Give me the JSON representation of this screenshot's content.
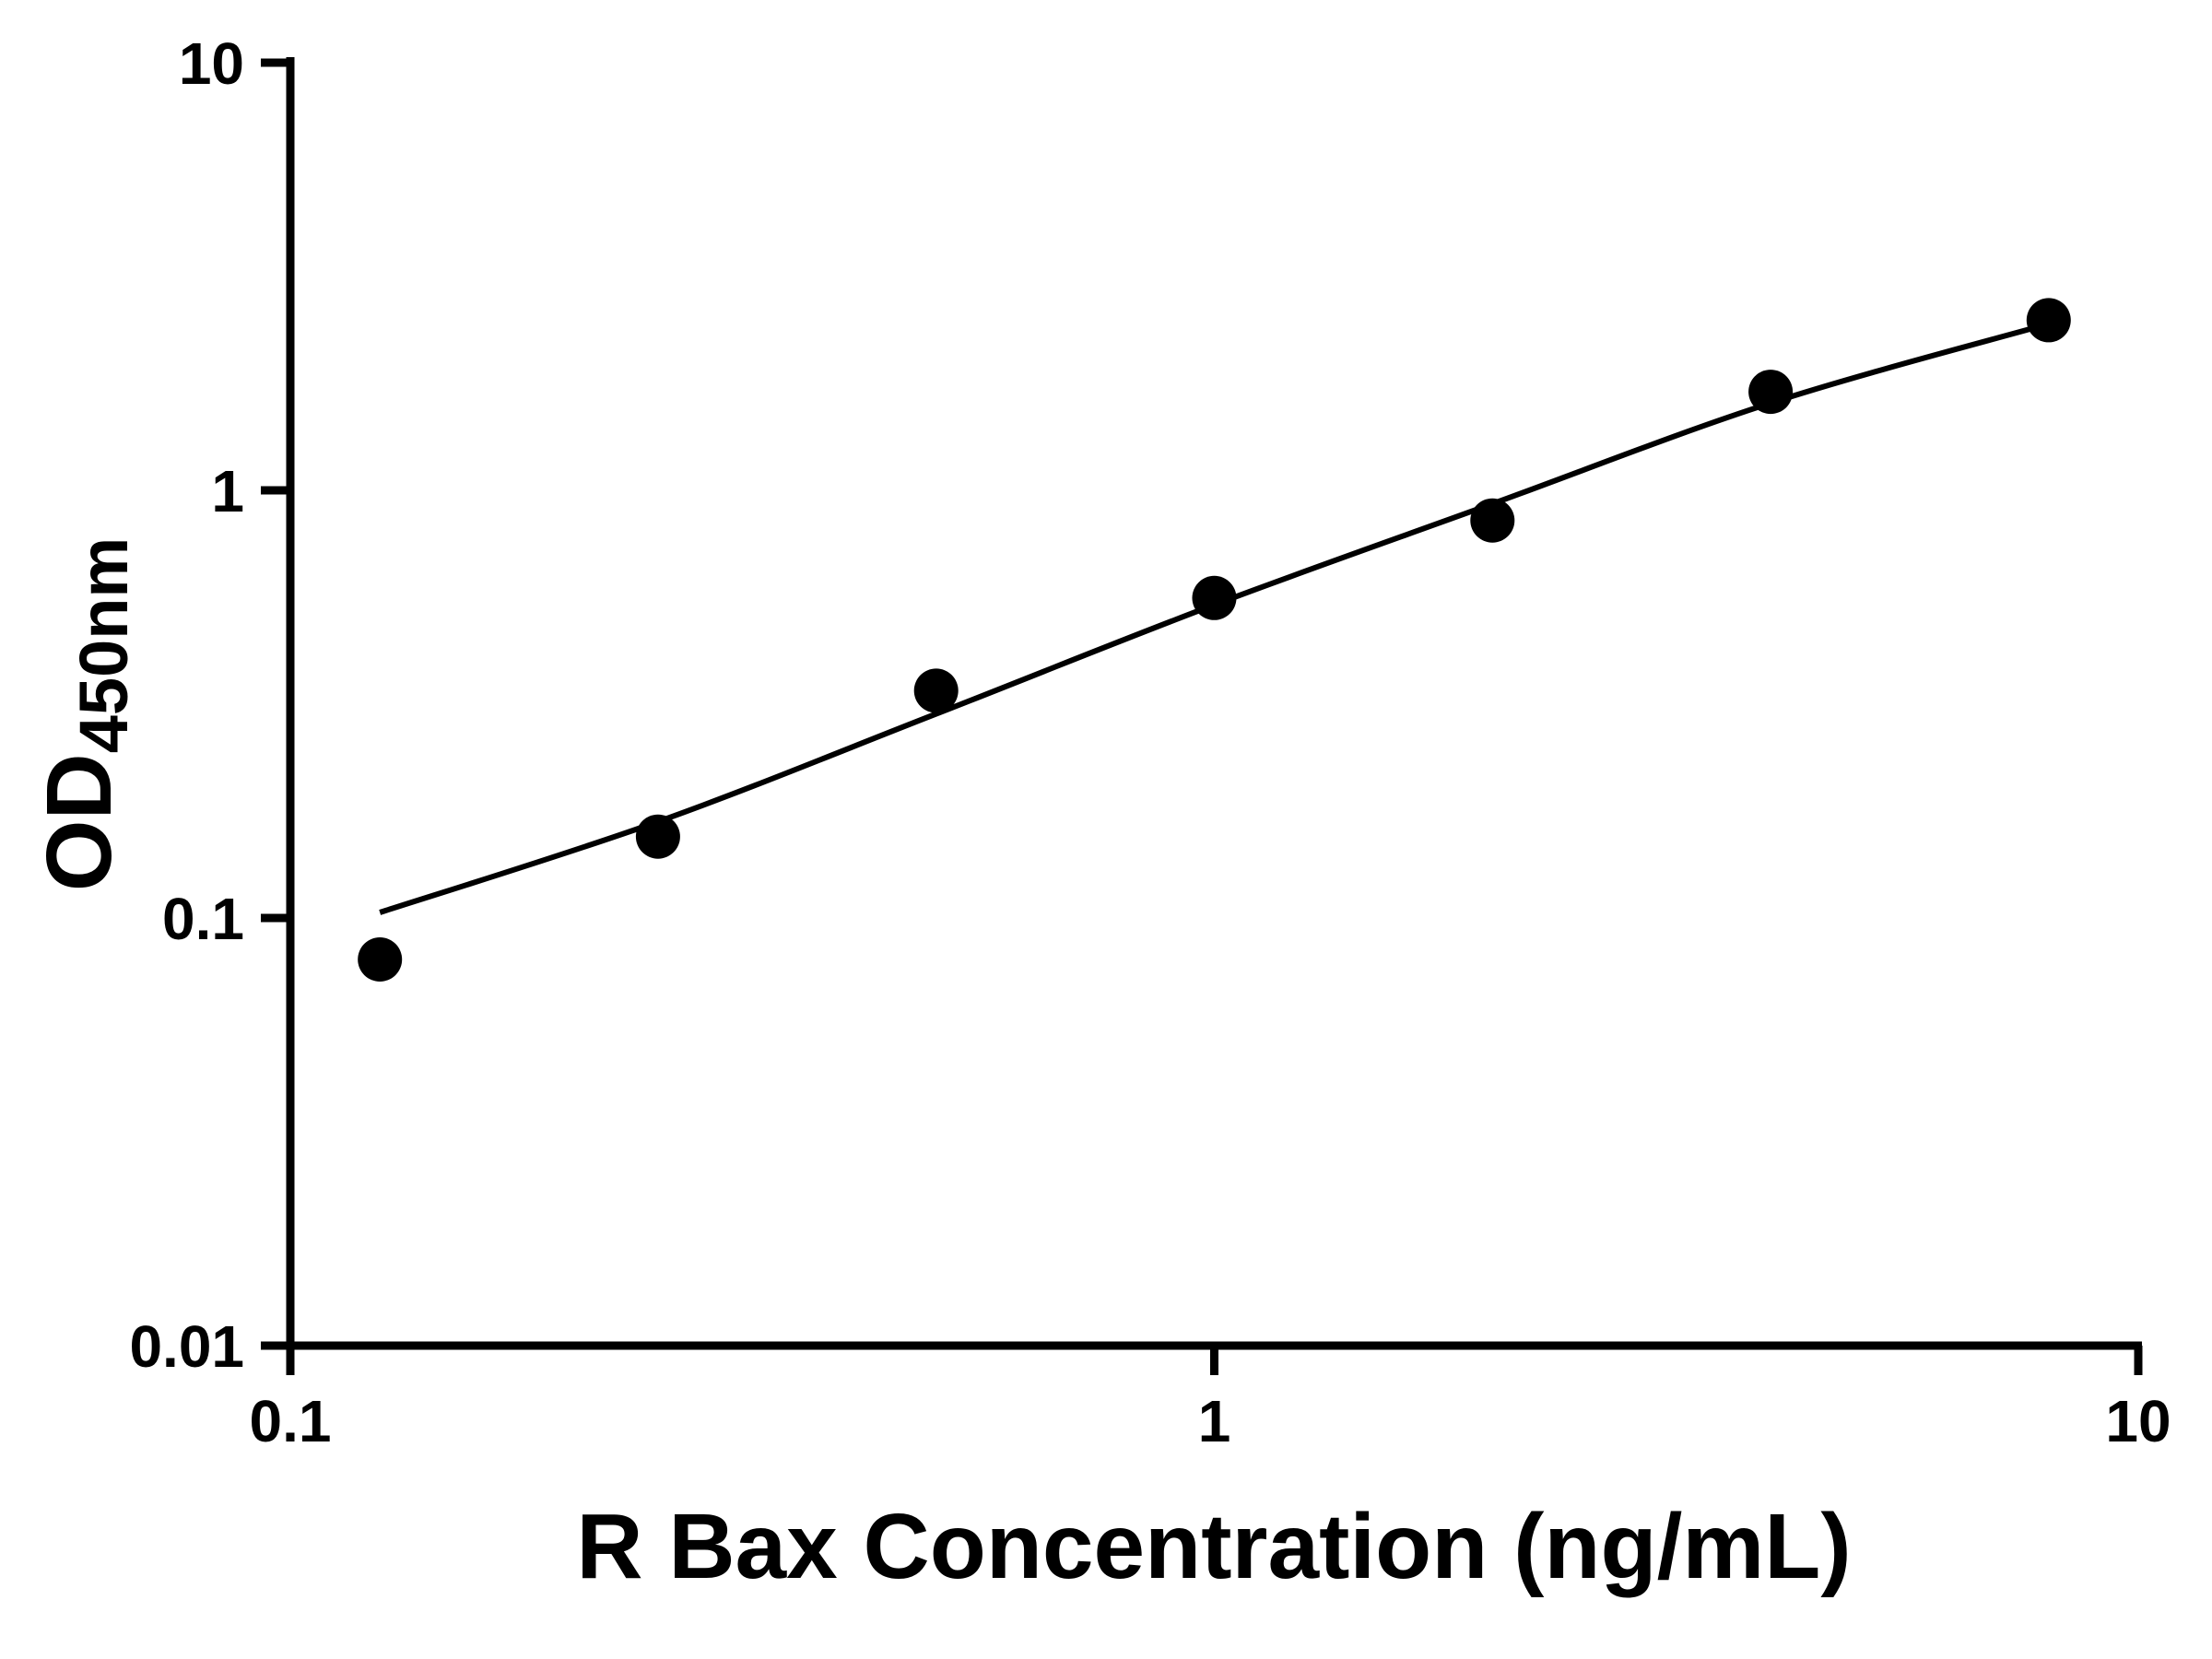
{
  "chart_data": {
    "type": "scatter",
    "title": "",
    "xlabel": "R Bax Concentration (ng/mL)",
    "ylabel_main": "OD",
    "ylabel_sub": "450nm",
    "x_scale": "log",
    "y_scale": "log",
    "xlim": [
      0.1,
      10
    ],
    "ylim": [
      0.01,
      10
    ],
    "grid": false,
    "x_ticks": [
      {
        "value": 0.1,
        "label": "0.1"
      },
      {
        "value": 1,
        "label": "1"
      },
      {
        "value": 10,
        "label": "10"
      }
    ],
    "y_ticks": [
      {
        "value": 0.01,
        "label": "0.01"
      },
      {
        "value": 0.1,
        "label": "0.1"
      },
      {
        "value": 1,
        "label": "1"
      },
      {
        "value": 10,
        "label": "10"
      }
    ],
    "points": {
      "x": [
        0.125,
        0.25,
        0.5,
        1,
        2,
        4,
        8
      ],
      "y": [
        0.08,
        0.155,
        0.34,
        0.56,
        0.85,
        1.7,
        2.5
      ]
    },
    "fit_curve": {
      "x": [
        0.125,
        0.25,
        0.5,
        1,
        2,
        4,
        8
      ],
      "y": [
        0.103,
        0.168,
        0.3,
        0.54,
        0.93,
        1.6,
        2.45
      ]
    },
    "colors": {
      "points": "#000000",
      "curve": "#000000",
      "axis": "#000000",
      "background": "#ffffff",
      "text": "#000000"
    }
  }
}
